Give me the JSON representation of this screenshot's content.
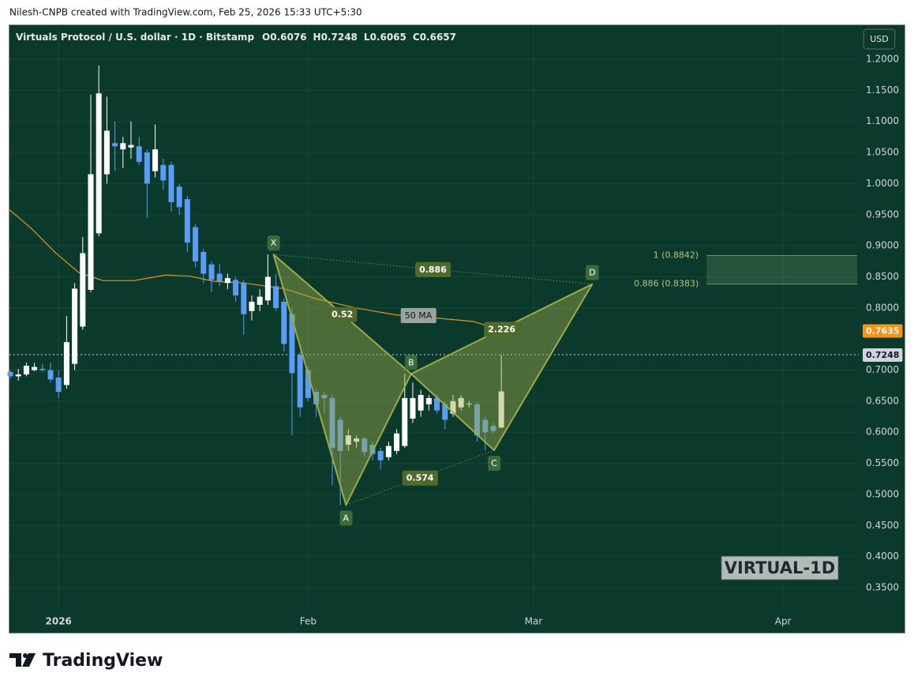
{
  "header": {
    "credit": "Nilesh-CNPB created with TradingView.com, Feb 25, 2026 15:33 UTC+5:30"
  },
  "chart_data": {
    "type": "candlestick",
    "title": "Virtuals Protocol / U.S. dollar · 1D · Bitstamp",
    "ohlc_legend": [
      {
        "label": "O",
        "value": 0.6076
      },
      {
        "label": "H",
        "value": 0.7248
      },
      {
        "label": "L",
        "value": 0.6065
      },
      {
        "label": "C",
        "value": 0.6657
      }
    ],
    "currency": "USD",
    "watermark": "VIRTUAL-1D",
    "x": [
      -6,
      -5,
      -4,
      -3,
      -2,
      -1,
      0,
      1,
      2,
      3,
      4,
      5,
      6,
      7,
      8,
      9,
      10,
      11,
      12,
      13,
      14,
      15,
      16,
      17,
      18,
      19,
      20,
      21,
      22,
      23,
      24,
      25,
      26,
      27,
      28,
      29,
      30,
      31,
      32,
      33,
      34,
      35,
      36,
      37,
      38,
      39,
      40,
      41,
      42,
      43,
      44,
      45,
      46,
      47,
      48,
      49,
      50,
      51,
      52,
      53,
      54,
      55
    ],
    "open": [
      0.697,
      0.69,
      0.693,
      0.7,
      0.702,
      0.7,
      0.688,
      0.676,
      0.71,
      0.77,
      0.829,
      0.92,
      1.015,
      1.065,
      1.055,
      1.058,
      1.06,
      1.05,
      1.02,
      1.03,
      1.03,
      0.995,
      0.975,
      0.93,
      0.89,
      0.87,
      0.855,
      0.84,
      0.845,
      0.84,
      0.795,
      0.805,
      0.812,
      0.835,
      0.81,
      0.79,
      0.725,
      0.7,
      0.665,
      0.66,
      0.655,
      0.62,
      0.58,
      0.585,
      0.59,
      0.58,
      0.57,
      0.56,
      0.57,
      0.578,
      0.622,
      0.635,
      0.645,
      0.655,
      0.645,
      0.63,
      0.64,
      0.645,
      0.645,
      0.62,
      0.61,
      0.6076
    ],
    "high": [
      0.7,
      0.702,
      0.712,
      0.712,
      0.71,
      0.712,
      0.7,
      0.787,
      0.84,
      0.914,
      1.143,
      1.19,
      1.14,
      1.1,
      1.075,
      1.1,
      1.075,
      1.055,
      1.095,
      1.04,
      1.035,
      1.0,
      0.98,
      0.935,
      0.895,
      0.875,
      0.87,
      0.855,
      0.85,
      0.845,
      0.82,
      0.83,
      0.886,
      0.855,
      0.815,
      0.8,
      0.73,
      0.705,
      0.67,
      0.665,
      0.66,
      0.625,
      0.605,
      0.595,
      0.592,
      0.585,
      0.575,
      0.585,
      0.605,
      0.694,
      0.68,
      0.668,
      0.66,
      0.66,
      0.65,
      0.66,
      0.66,
      0.65,
      0.648,
      0.625,
      0.615,
      0.7248
    ],
    "low": [
      0.686,
      0.683,
      0.69,
      0.698,
      0.697,
      0.68,
      0.655,
      0.67,
      0.7,
      0.765,
      0.825,
      0.915,
      1.0,
      1.02,
      1.025,
      1.04,
      1.03,
      0.945,
      1.01,
      0.99,
      0.955,
      0.95,
      0.89,
      0.865,
      0.84,
      0.825,
      0.835,
      0.83,
      0.81,
      0.757,
      0.78,
      0.795,
      0.805,
      0.795,
      0.73,
      0.595,
      0.625,
      0.65,
      0.625,
      0.63,
      0.515,
      0.483,
      0.57,
      0.575,
      0.56,
      0.555,
      0.54,
      0.555,
      0.565,
      0.575,
      0.615,
      0.625,
      0.635,
      0.63,
      0.605,
      0.625,
      0.635,
      0.64,
      0.585,
      0.571,
      0.598,
      0.6065
    ],
    "close": [
      0.69,
      0.693,
      0.707,
      0.705,
      0.7,
      0.685,
      0.665,
      0.745,
      0.831,
      0.888,
      1.015,
      1.145,
      1.085,
      1.06,
      1.065,
      1.062,
      1.035,
      1.0,
      1.055,
      1.005,
      0.97,
      0.962,
      0.905,
      0.875,
      0.855,
      0.845,
      0.843,
      0.848,
      0.82,
      0.79,
      0.81,
      0.818,
      0.85,
      0.8,
      0.742,
      0.695,
      0.64,
      0.655,
      0.645,
      0.655,
      0.575,
      0.57,
      0.595,
      0.59,
      0.568,
      0.565,
      0.555,
      0.578,
      0.598,
      0.655,
      0.655,
      0.66,
      0.655,
      0.635,
      0.62,
      0.65,
      0.655,
      0.646,
      0.595,
      0.6,
      0.602,
      0.6657
    ],
    "up_color": "#ffffff",
    "down_color": "#5b9cf6",
    "xlim": [
      -6.1,
      99.4
    ],
    "xticks": [
      {
        "value": 0,
        "label": "2026"
      },
      {
        "value": 31,
        "label": "Feb"
      },
      {
        "value": 59,
        "label": "Mar"
      },
      {
        "value": 90,
        "label": "Apr"
      }
    ],
    "ylim": [
      0.317,
      1.2546
    ],
    "yticks": [
      {
        "value": 1.2,
        "label": "1.2000"
      },
      {
        "value": 1.15,
        "label": "1.1500"
      },
      {
        "value": 1.1,
        "label": "1.1000"
      },
      {
        "value": 1.05,
        "label": "1.0500"
      },
      {
        "value": 1.0,
        "label": "1.0000"
      },
      {
        "value": 0.95,
        "label": "0.9500"
      },
      {
        "value": 0.9,
        "label": "0.9000"
      },
      {
        "value": 0.85,
        "label": "0.8500"
      },
      {
        "value": 0.8,
        "label": "0.8000"
      },
      {
        "value": 0.7,
        "label": "0.7000"
      },
      {
        "value": 0.65,
        "label": "0.6500"
      },
      {
        "value": 0.6,
        "label": "0.6000"
      },
      {
        "value": 0.55,
        "label": "0.5500"
      },
      {
        "value": 0.5,
        "label": "0.5000"
      },
      {
        "value": 0.45,
        "label": "0.4500"
      },
      {
        "value": 0.4,
        "label": "0.4000"
      },
      {
        "value": 0.35,
        "label": "0.3500"
      }
    ],
    "grid": true,
    "ma": {
      "name": "50 MA",
      "color": "#e0951e",
      "x": [
        -6.1,
        -3.3,
        -0.4,
        2.5,
        5.5,
        9.4,
        13.3,
        16.3,
        19.2,
        23.1,
        28.0,
        31.9,
        36.9,
        41.8,
        46.7,
        51.6,
        53.5,
        55
      ],
      "values": [
        0.958,
        0.927,
        0.889,
        0.857,
        0.844,
        0.844,
        0.853,
        0.851,
        0.843,
        0.84,
        0.831,
        0.815,
        0.8,
        0.789,
        0.784,
        0.778,
        0.77,
        0.7635
      ]
    },
    "price_markers": [
      {
        "value": 0.7635,
        "color": "#f7931a"
      },
      {
        "value": 0.7248,
        "color": "#d1d4dc",
        "line": "dotted"
      }
    ],
    "pattern": {
      "color": "#9aab4a",
      "points": [
        {
          "label": "X",
          "x": 26.7,
          "value": 0.886
        },
        {
          "label": "A",
          "x": 35.7,
          "value": 0.483
        },
        {
          "label": "B",
          "x": 43.8,
          "value": 0.694
        },
        {
          "label": "C",
          "x": 54.1,
          "value": 0.571
        },
        {
          "label": "D",
          "x": 66.3,
          "value": 0.8383
        }
      ],
      "ratios": [
        {
          "segment": [
            "X",
            "B"
          ],
          "value": 0.52
        },
        {
          "segment": [
            "A",
            "C"
          ],
          "value": 0.574
        },
        {
          "segment": [
            "B",
            "D"
          ],
          "value": 2.226
        },
        {
          "segment": [
            "X",
            "D"
          ],
          "value": 0.886
        }
      ]
    },
    "zone": {
      "x_start": 80.5,
      "levels": [
        {
          "label": "1 (0.8842)",
          "value": 0.8842
        },
        {
          "label": "0.886 (0.8383)",
          "value": 0.8383
        }
      ]
    }
  },
  "footer": {
    "brand": "TradingView"
  }
}
